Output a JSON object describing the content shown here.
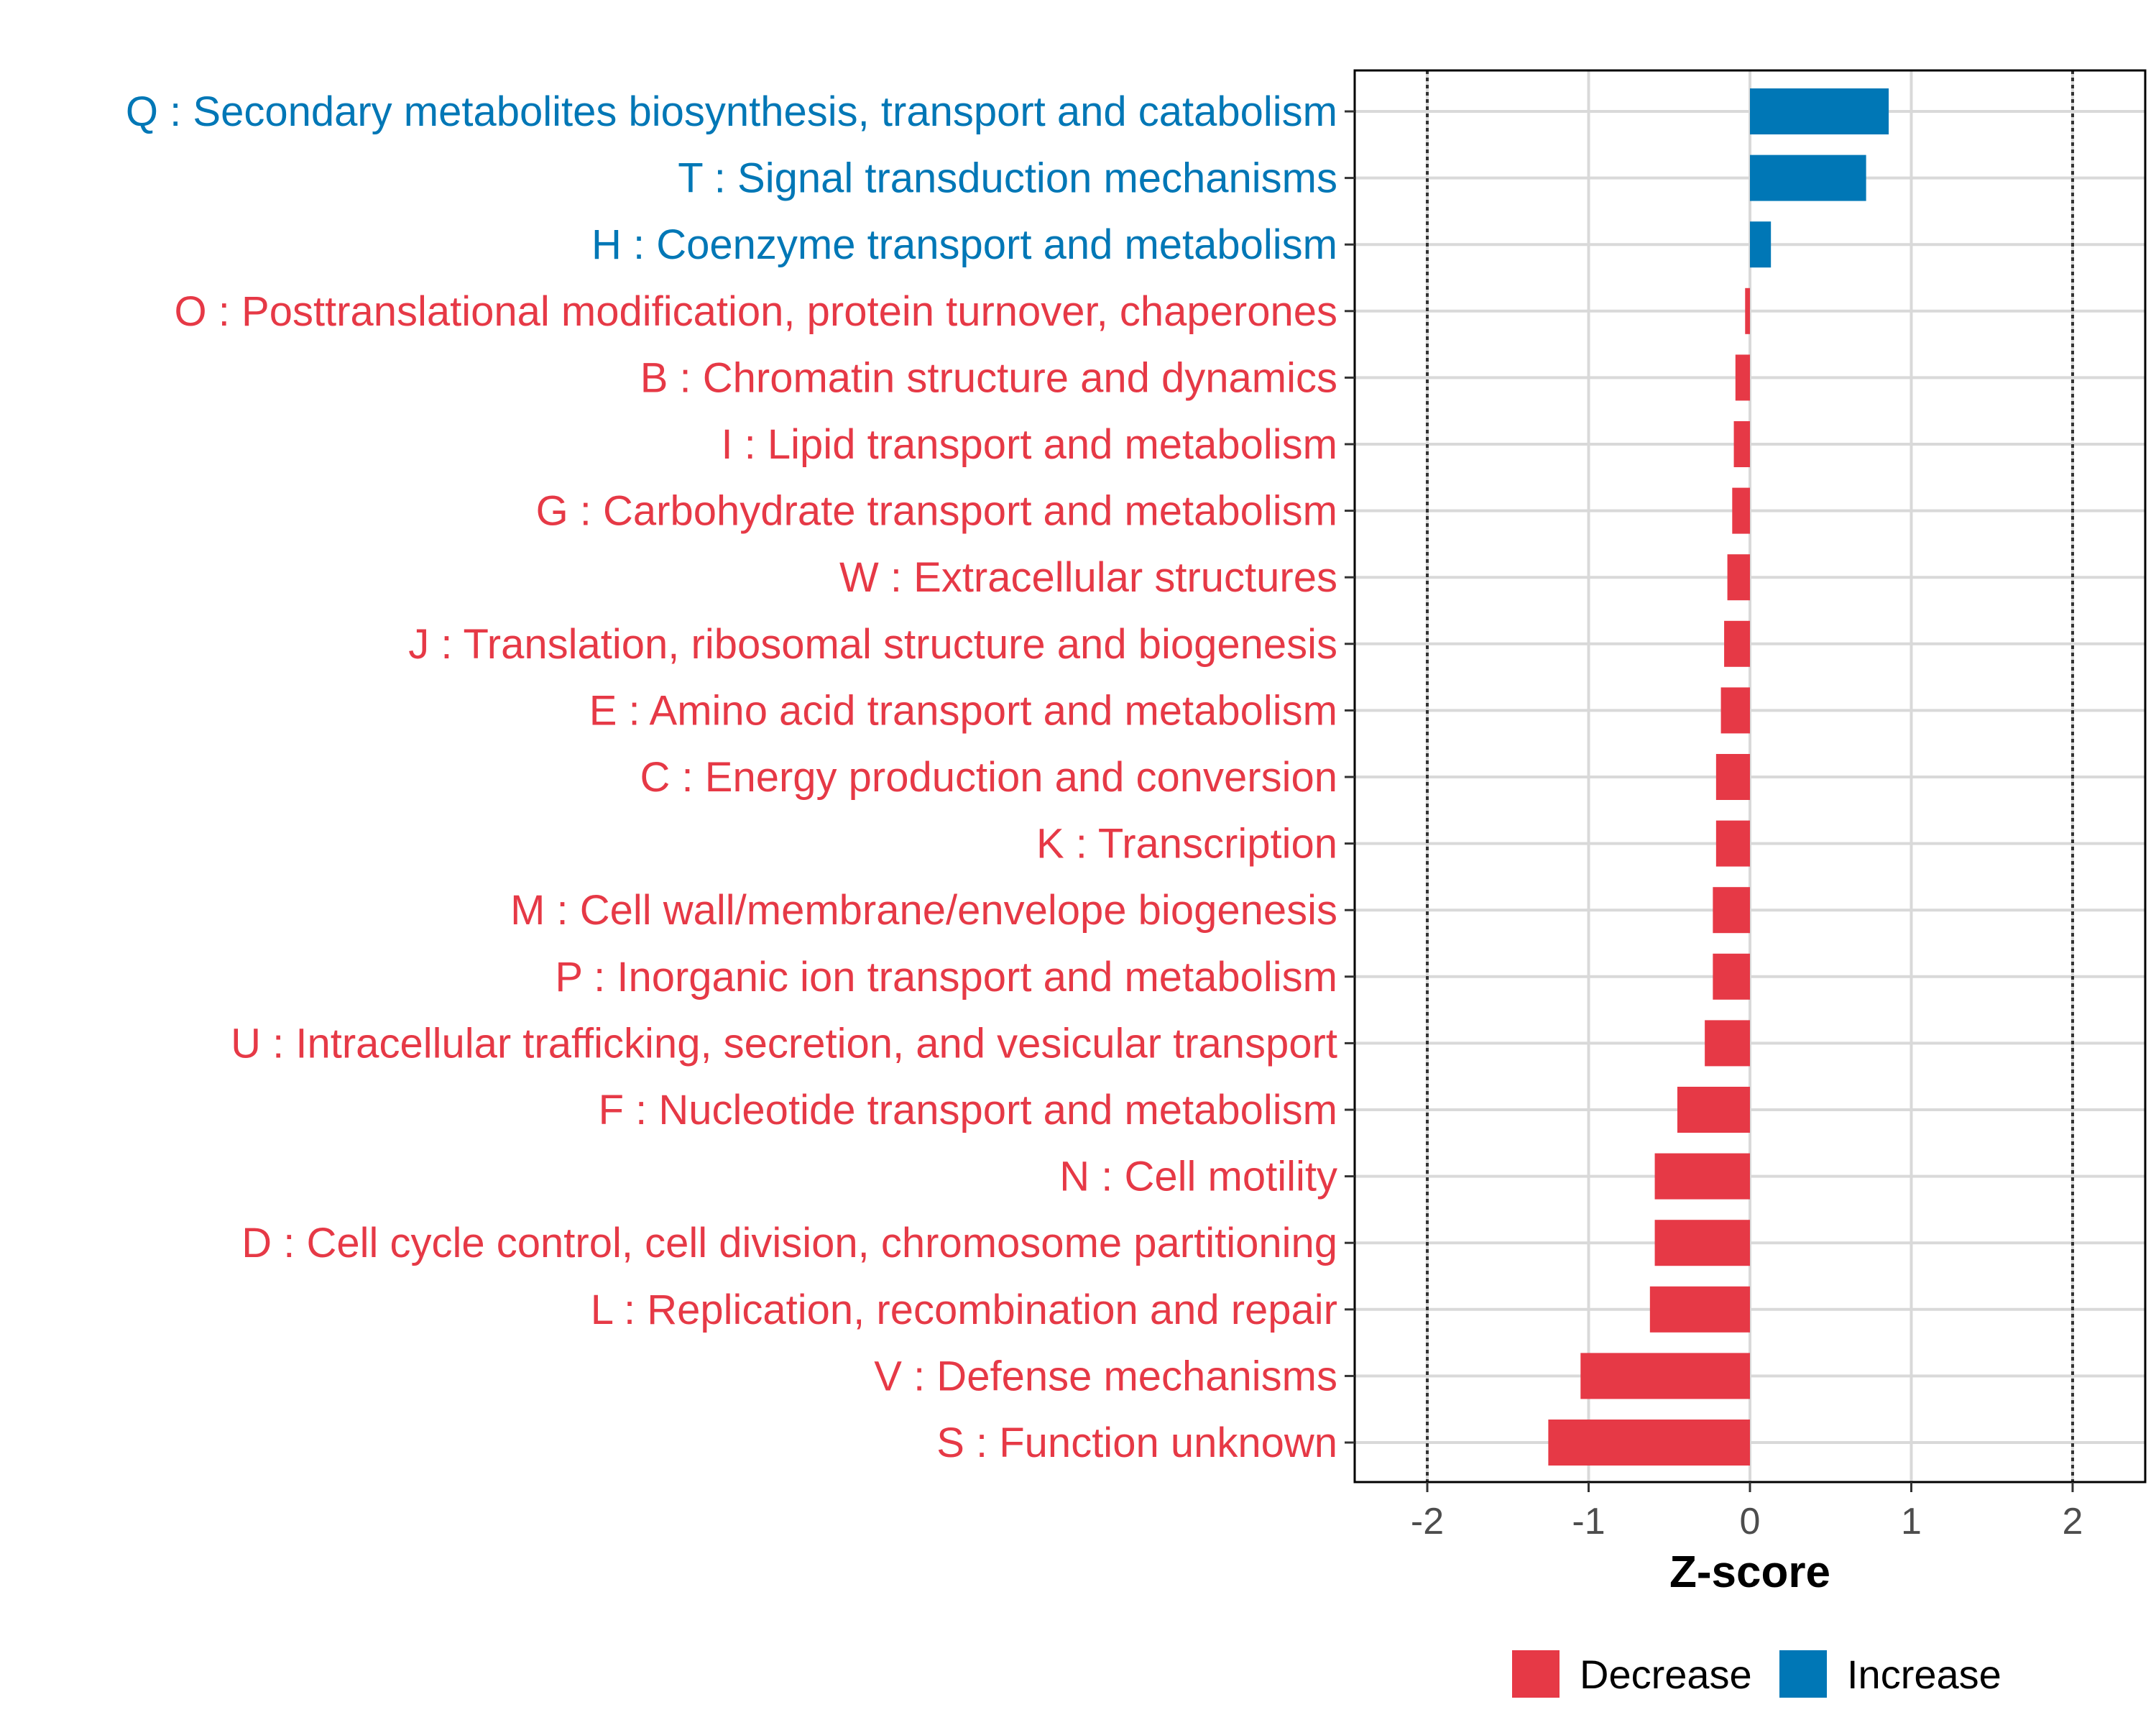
{
  "chart_data": {
    "type": "bar",
    "orientation": "horizontal",
    "xlabel": "Z-score",
    "xlim": [
      -2.45,
      2.45
    ],
    "xticks": [
      -2,
      -1,
      0,
      1,
      2
    ],
    "xtick_labels": [
      "-2",
      "-1",
      "0",
      "1",
      "2"
    ],
    "reference_lines": [
      -2,
      2
    ],
    "grid": true,
    "categories": [
      "Q : Secondary metabolites biosynthesis, transport and catabolism",
      "T : Signal transduction mechanisms",
      "H : Coenzyme transport and metabolism",
      "O : Posttranslational modification, protein turnover, chaperones",
      "B : Chromatin structure and dynamics",
      "I : Lipid transport and metabolism",
      "G : Carbohydrate transport and metabolism",
      "W : Extracellular structures",
      "J : Translation, ribosomal structure and biogenesis",
      "E : Amino acid transport and metabolism",
      "C : Energy production and conversion",
      "K : Transcription",
      "M : Cell wall/membrane/envelope biogenesis",
      "P : Inorganic ion transport and metabolism",
      "U : Intracellular trafficking, secretion, and vesicular transport",
      "F : Nucleotide transport and metabolism",
      "N : Cell motility",
      "D : Cell cycle control, cell division, chromosome partitioning",
      "L : Replication, recombination and repair",
      "V : Defense mechanisms",
      "S : Function unknown"
    ],
    "values": [
      0.86,
      0.72,
      0.13,
      -0.03,
      -0.09,
      -0.1,
      -0.11,
      -0.14,
      -0.16,
      -0.18,
      -0.21,
      -0.21,
      -0.23,
      -0.23,
      -0.28,
      -0.45,
      -0.59,
      -0.59,
      -0.62,
      -1.05,
      -1.25
    ],
    "groups": [
      "Increase",
      "Increase",
      "Increase",
      "Decrease",
      "Decrease",
      "Decrease",
      "Decrease",
      "Decrease",
      "Decrease",
      "Decrease",
      "Decrease",
      "Decrease",
      "Decrease",
      "Decrease",
      "Decrease",
      "Decrease",
      "Decrease",
      "Decrease",
      "Decrease",
      "Decrease",
      "Decrease"
    ],
    "legend": [
      {
        "label": "Decrease",
        "color": "#e63946"
      },
      {
        "label": "Increase",
        "color": "#0077b6"
      }
    ],
    "legend_position": "bottom-right",
    "colors": {
      "Decrease": "#e63946",
      "Increase": "#0077b6"
    }
  }
}
